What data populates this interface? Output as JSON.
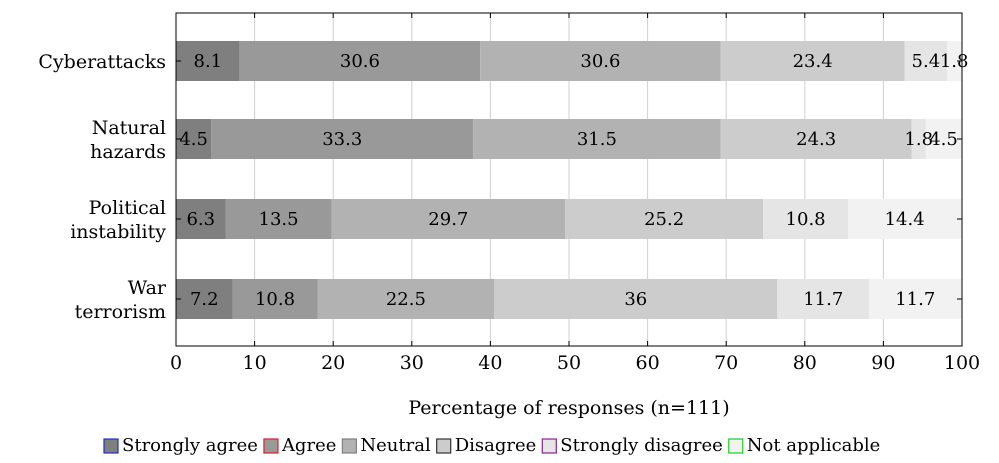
{
  "chart_data": {
    "type": "bar",
    "orientation": "horizontal",
    "stacked": true,
    "categories": [
      [
        "Cyberattacks"
      ],
      [
        "Natural",
        "hazards"
      ],
      [
        "Political",
        "instability"
      ],
      [
        "War",
        "terrorism"
      ]
    ],
    "series": [
      {
        "name": "Strongly agree",
        "values": [
          8.1,
          4.5,
          6.3,
          7.2
        ],
        "fill": "#7f7f7f",
        "legend_border": "#2233bb"
      },
      {
        "name": "Agree",
        "values": [
          30.6,
          33.3,
          13.5,
          10.8
        ],
        "fill": "#999999",
        "legend_border": "#dd2222"
      },
      {
        "name": "Neutral",
        "values": [
          30.6,
          31.5,
          29.7,
          22.5
        ],
        "fill": "#b2b2b2",
        "legend_border": "#808080"
      },
      {
        "name": "Disagree",
        "values": [
          23.4,
          24.3,
          25.2,
          36
        ],
        "fill": "#cccccc",
        "legend_border": "#333333"
      },
      {
        "name": "Strongly disagree",
        "values": [
          5.4,
          1.8,
          10.8,
          11.7
        ],
        "fill": "#e5e5e5",
        "legend_border": "#882288"
      },
      {
        "name": "Not applicable",
        "values": [
          1.8,
          4.5,
          14.4,
          11.7
        ],
        "fill": "#f2f2f2",
        "legend_border": "#22cc22"
      }
    ],
    "xlabel": "Percentage of responses (n=111)",
    "ylabel": "",
    "xlim": [
      0,
      100
    ],
    "xticks": [
      0,
      10,
      20,
      30,
      40,
      50,
      60,
      70,
      80,
      90,
      100
    ],
    "grid": "vertical",
    "legend": "bottom"
  }
}
